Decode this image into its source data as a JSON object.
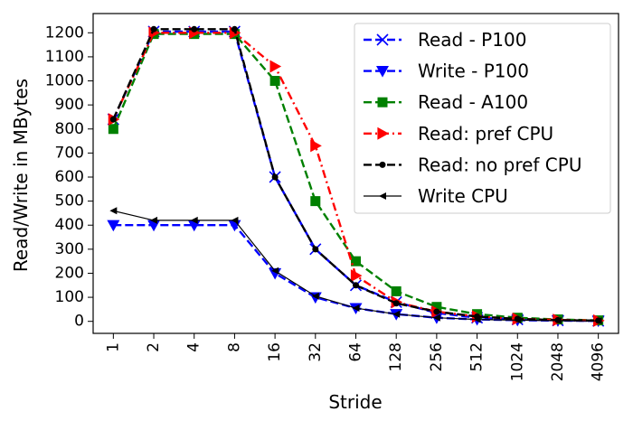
{
  "chart_data": {
    "type": "line",
    "title": "",
    "xlabel": "Stride",
    "ylabel": "Read/Write in MBytes",
    "categories": [
      "1",
      "2",
      "4",
      "8",
      "16",
      "32",
      "64",
      "128",
      "256",
      "512",
      "1024",
      "2048",
      "4096"
    ],
    "ylim": [
      -50,
      1280
    ],
    "yticks": [
      0,
      100,
      200,
      300,
      400,
      500,
      600,
      700,
      800,
      900,
      1000,
      1100,
      1200
    ],
    "grid": false,
    "legend_position": "top-right",
    "series": [
      {
        "name": "Read - P100",
        "color": "#0000ff",
        "dash": "dashed",
        "marker": "x",
        "values": [
          840,
          1205,
          1205,
          1205,
          600,
          300,
          150,
          80,
          35,
          15,
          8,
          4,
          2
        ]
      },
      {
        "name": "Write - P100",
        "color": "#0000ff",
        "dash": "dashed",
        "marker": "triangle-down",
        "values": [
          400,
          400,
          400,
          400,
          200,
          100,
          55,
          30,
          15,
          8,
          5,
          3,
          2
        ]
      },
      {
        "name": "Read - A100",
        "color": "#008000",
        "dash": "dashed",
        "marker": "square",
        "values": [
          800,
          1195,
          1195,
          1195,
          1000,
          500,
          250,
          125,
          60,
          30,
          15,
          8,
          4
        ]
      },
      {
        "name": "Read: pref CPU",
        "color": "#ff0000",
        "dash": "dashdot",
        "marker": "triangle-right",
        "values": [
          840,
          1200,
          1200,
          1200,
          1060,
          730,
          190,
          80,
          40,
          20,
          10,
          6,
          3
        ]
      },
      {
        "name": "Read: no pref CPU",
        "color": "#000000",
        "dash": "dashed",
        "marker": "circle",
        "values": [
          840,
          1215,
          1215,
          1215,
          600,
          300,
          150,
          75,
          40,
          20,
          10,
          5,
          3
        ]
      },
      {
        "name": "Write CPU",
        "color": "#000000",
        "dash": "solid",
        "marker": "triangle-left",
        "values": [
          460,
          420,
          420,
          420,
          210,
          105,
          55,
          30,
          15,
          8,
          5,
          3,
          2
        ]
      }
    ]
  }
}
